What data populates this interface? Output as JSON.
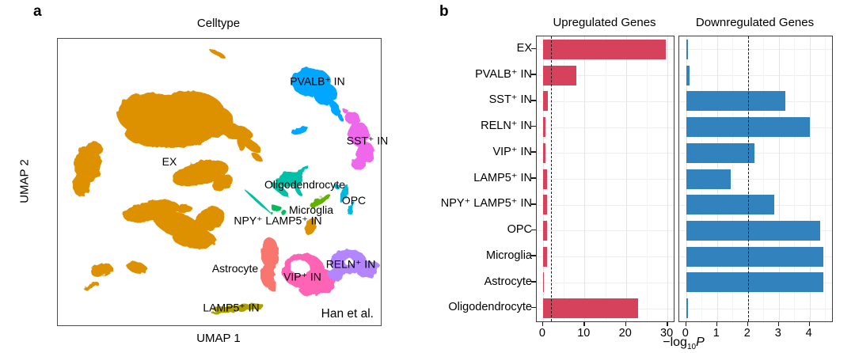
{
  "figure": {
    "panel_a_label": "a",
    "panel_b_label": "b"
  },
  "panel_a": {
    "title": "Celltype",
    "x_axis_label": "UMAP 1",
    "y_axis_label": "UMAP 2",
    "attribution": "Han et al.",
    "clusters": [
      {
        "name": "EX",
        "color": "#DE9100"
      },
      {
        "name": "PVALB⁺ IN",
        "color": "#00A6FF"
      },
      {
        "name": "SST⁺ IN",
        "color": "#EF67EB"
      },
      {
        "name": "Oligodendrocyte",
        "color": "#00C1A7"
      },
      {
        "name": "OPC",
        "color": "#00BADE"
      },
      {
        "name": "Microglia",
        "color": "#64B200"
      },
      {
        "name": "NPY⁺ LAMP5⁺ IN",
        "color": "#00BD5C"
      },
      {
        "name": "Astrocyte",
        "color": "#F8766D"
      },
      {
        "name": "VIP⁺ IN",
        "color": "#FF63B6"
      },
      {
        "name": "RELN⁺ IN",
        "color": "#B385FF"
      },
      {
        "name": "LAMP5⁺ IN",
        "color": "#AEA200"
      }
    ]
  },
  "panel_b": {
    "axis_label": {
      "prefix": "−log",
      "sub": "10",
      "suffix": "P"
    }
  },
  "chart_data": [
    {
      "type": "bar",
      "orientation": "horizontal",
      "title": "Upregulated Genes",
      "bar_color": "#D6415B",
      "categories": [
        "EX",
        "PVALB⁺ IN",
        "SST⁺ IN",
        "RELN⁺ IN",
        "VIP⁺ IN",
        "LAMP5⁺ IN",
        "NPY⁺ LAMP5⁺ IN",
        "OPC",
        "Microglia",
        "Astrocyte",
        "Oligodendrocyte"
      ],
      "values": [
        29.5,
        8,
        1.1,
        0.6,
        0.6,
        0.9,
        1.0,
        0.9,
        1.0,
        0.2,
        23
      ],
      "xticks": [
        0,
        10,
        20,
        30
      ],
      "xlim": [
        0,
        30
      ],
      "dashed_line_x": 2,
      "xlabel": "−log10 P",
      "grid": true
    },
    {
      "type": "bar",
      "orientation": "horizontal",
      "title": "Downregulated Genes",
      "bar_color": "#3182BD",
      "categories": [
        "EX",
        "PVALB⁺ IN",
        "SST⁺ IN",
        "RELN⁺ IN",
        "VIP⁺ IN",
        "LAMP5⁺ IN",
        "NPY⁺ LAMP5⁺ IN",
        "OPC",
        "Microglia",
        "Astrocyte",
        "Oligodendrocyte"
      ],
      "values": [
        0.05,
        0.1,
        3.2,
        4.0,
        2.2,
        1.45,
        2.85,
        4.35,
        4.45,
        4.45,
        0.05
      ],
      "xticks": [
        0,
        1,
        2,
        3,
        4
      ],
      "xlim": [
        0,
        4.5
      ],
      "dashed_line_x": 2,
      "xlabel": "−log10 P",
      "grid": true
    }
  ]
}
